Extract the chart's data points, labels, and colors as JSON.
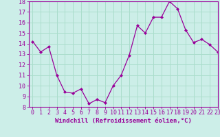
{
  "x": [
    0,
    1,
    2,
    3,
    4,
    5,
    6,
    7,
    8,
    9,
    10,
    11,
    12,
    13,
    14,
    15,
    16,
    17,
    18,
    19,
    20,
    21,
    22,
    23
  ],
  "y": [
    14.2,
    13.2,
    13.7,
    11.0,
    9.4,
    9.3,
    9.7,
    8.3,
    8.7,
    8.4,
    10.0,
    11.0,
    12.9,
    15.7,
    15.0,
    16.5,
    16.5,
    18.0,
    17.3,
    15.3,
    14.1,
    14.4,
    13.9,
    13.2
  ],
  "line_color": "#990099",
  "marker": "D",
  "marker_size": 2.0,
  "bg_color": "#cceee8",
  "grid_color": "#aaddcc",
  "xlabel": "Windchill (Refroidissement éolien,°C)",
  "ylim": [
    8,
    18
  ],
  "xlim": [
    -0.5,
    23
  ],
  "yticks": [
    8,
    9,
    10,
    11,
    12,
    13,
    14,
    15,
    16,
    17,
    18
  ],
  "xticks": [
    0,
    1,
    2,
    3,
    4,
    5,
    6,
    7,
    8,
    9,
    10,
    11,
    12,
    13,
    14,
    15,
    16,
    17,
    18,
    19,
    20,
    21,
    22,
    23
  ],
  "xlabel_fontsize": 6.5,
  "tick_fontsize": 6.0,
  "axis_color": "#990099",
  "linewidth": 0.9
}
